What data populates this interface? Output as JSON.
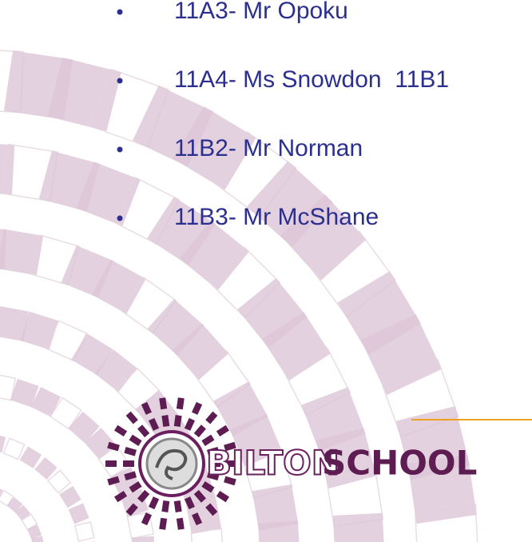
{
  "list": {
    "items": [
      "11A3- Mr Opoku",
      "11A4- Ms Snowdon  11B1",
      "11B2- Mr Norman",
      "11B3- Mr McShane"
    ]
  },
  "logo": {
    "name_part1": "BILTON",
    "name_part2": "SCHOOL"
  }
}
